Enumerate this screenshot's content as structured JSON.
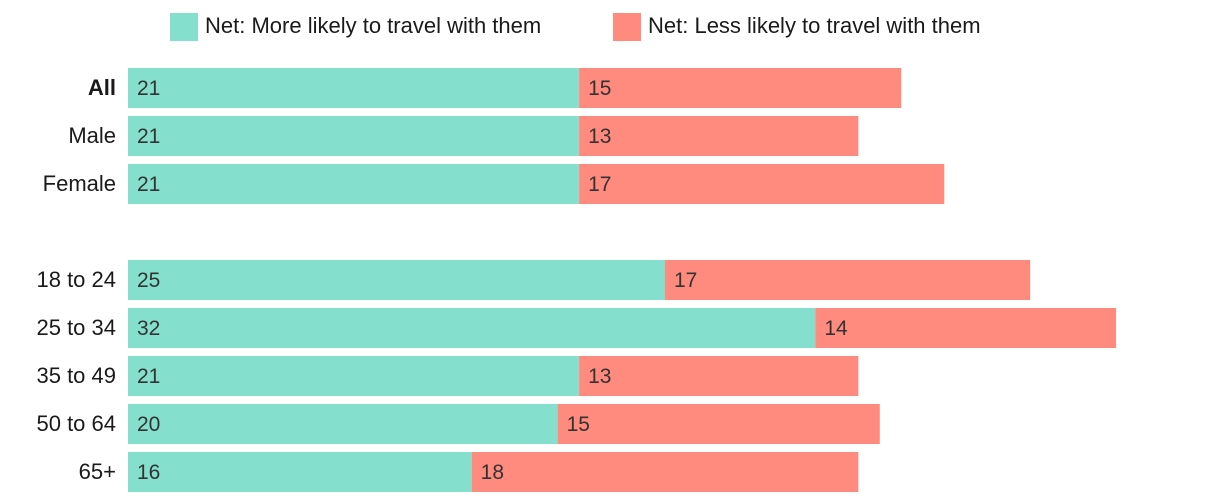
{
  "chart_data": {
    "type": "bar",
    "orientation": "horizontal",
    "stacked": true,
    "categories": [
      "All",
      "Male",
      "Female",
      "18 to 24",
      "25 to 34",
      "35 to 49",
      "50 to 64",
      "65+"
    ],
    "bold_categories": [
      "All"
    ],
    "groups": [
      [
        "All",
        "Male",
        "Female"
      ],
      [
        "18 to 24",
        "25 to 34",
        "35 to 49",
        "50 to 64",
        "65+"
      ]
    ],
    "series": [
      {
        "name": "Net: More likely to travel with them",
        "color": "#84dfcc",
        "values": [
          21,
          21,
          21,
          25,
          32,
          21,
          20,
          16
        ]
      },
      {
        "name": "Net: Less likely to travel with them",
        "color": "#ff8a7e",
        "values": [
          15,
          13,
          17,
          17,
          14,
          13,
          15,
          18
        ]
      }
    ],
    "xlim": [
      0,
      46
    ],
    "grid": false,
    "legend_position": "top"
  }
}
